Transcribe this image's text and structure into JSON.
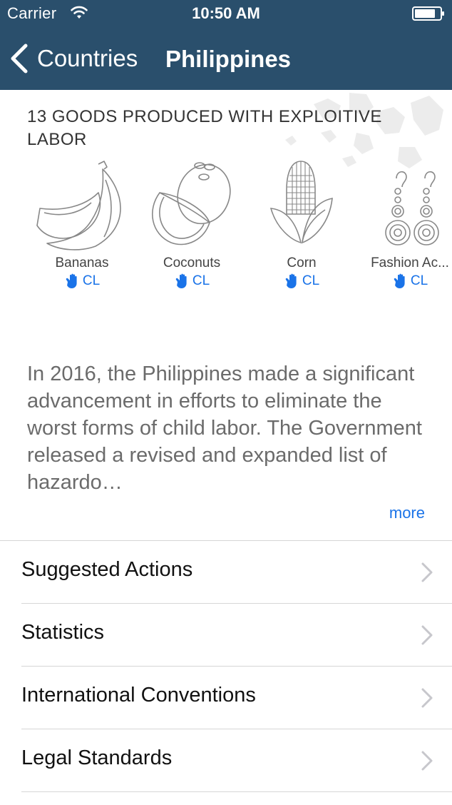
{
  "status": {
    "carrier": "Carrier",
    "time": "10:50 AM"
  },
  "nav": {
    "back_label": "Countries",
    "title": "Philippines"
  },
  "goods": {
    "heading": "13 GOODS PRODUCED WITH EXPLOITIVE LABOR",
    "items": [
      {
        "name": "Bananas",
        "tag": "CL",
        "icon": "bananas-icon"
      },
      {
        "name": "Coconuts",
        "tag": "CL",
        "icon": "coconuts-icon"
      },
      {
        "name": "Corn",
        "tag": "CL",
        "icon": "corn-icon"
      },
      {
        "name": "Fashion Ac...",
        "tag": "CL",
        "icon": "earrings-icon"
      }
    ]
  },
  "description": {
    "text": "In 2016, the Philippines made a significant advancement in efforts to eliminate the worst forms of child labor. The Government released a revised and expanded list of hazardo…",
    "more_label": "more"
  },
  "menu": [
    {
      "label": "Suggested Actions"
    },
    {
      "label": "Statistics"
    },
    {
      "label": "International Conventions"
    },
    {
      "label": "Legal Standards"
    }
  ],
  "colors": {
    "nav_bg": "#2a4f6c",
    "link": "#1a73e8"
  }
}
